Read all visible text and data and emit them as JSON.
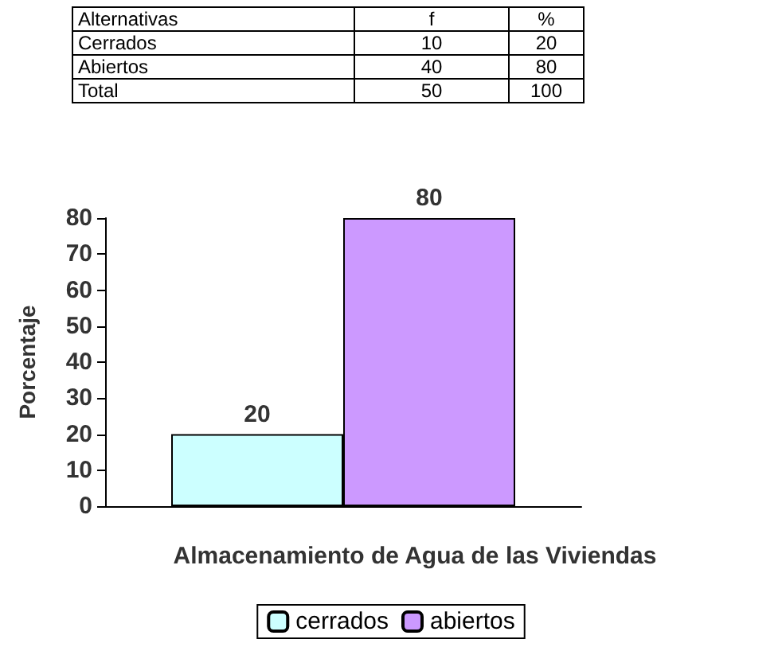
{
  "chart_data": {
    "type": "bar",
    "xlabel": "Almacenamiento de Agua de las Viviendas",
    "ylabel": "Porcentaje",
    "categories": [
      null
    ],
    "series": [
      {
        "name": "cerrados",
        "color": "#ccffff",
        "values": [
          20
        ]
      },
      {
        "name": "abiertos",
        "color": "#cc99ff",
        "values": [
          80
        ]
      }
    ],
    "ylim": [
      0,
      80
    ],
    "yticks": [
      0,
      10,
      20,
      30,
      40,
      50,
      60,
      70,
      80
    ],
    "grid": false,
    "data_labels": true,
    "legend": "bottom",
    "annotations": [
      "Alternativas",
      "f",
      "%",
      "Cerrados",
      "10",
      "20",
      "Abiertos",
      "40",
      "80",
      "Total",
      "50",
      "100"
    ]
  }
}
